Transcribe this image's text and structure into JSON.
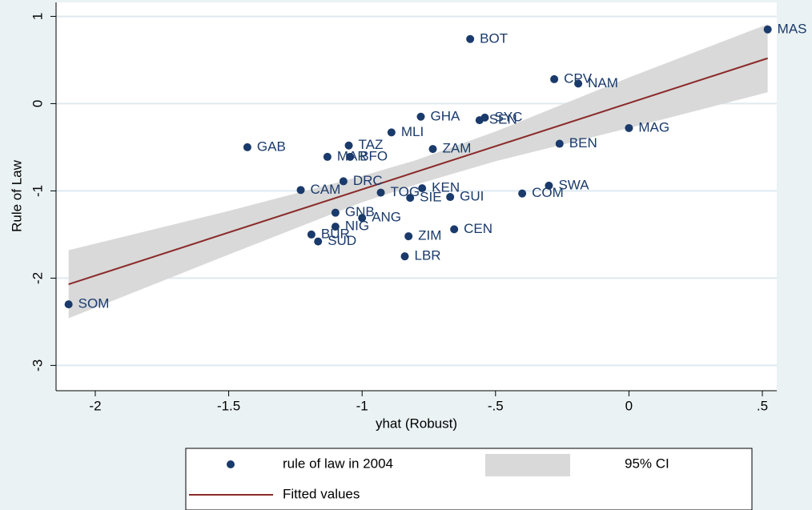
{
  "chart_data": {
    "type": "scatter",
    "xlabel": "yhat (Robust)",
    "ylabel": "Rule of Law",
    "xlim": [
      -2.147,
      0.554
    ],
    "ylim": [
      -3.29,
      1.16
    ],
    "xticks": [
      -2,
      {
        "value": -1.5,
        "label": "-1.5"
      },
      -1,
      {
        "value": -0.5,
        "label": "-.5"
      },
      0,
      {
        "value": 0.5,
        "label": ".5"
      }
    ],
    "yticks": [
      -3,
      -2,
      -1,
      0,
      1
    ],
    "grid": true,
    "series": [
      {
        "name": "rule of law  in 2004",
        "color": "#1a3a6b",
        "labels": [
          "MAS",
          "BOT",
          "CPV",
          "NAM",
          "GHA",
          "SYC",
          "SEN",
          "MLI",
          "GAB",
          "TAZ",
          "MAR",
          "BFO",
          "ZAM",
          "MAG",
          "BEN",
          "SWA",
          "COM",
          "KEN",
          "TOG",
          "SIE",
          "GUI",
          "CAM",
          "DRC",
          "GNB",
          "ANG",
          "NIG",
          "BUR",
          "SUD",
          "ZIM",
          "CEN",
          "LBR",
          "SOM"
        ],
        "x": [
          0.52,
          -0.595,
          -0.28,
          -0.19,
          -0.78,
          -0.54,
          -0.56,
          -0.89,
          -1.43,
          -1.05,
          -1.13,
          -1.045,
          -0.735,
          0,
          -0.26,
          -0.3,
          -0.4,
          -0.775,
          -0.93,
          -0.82,
          -0.67,
          -1.23,
          -1.07,
          -1.1,
          -1.0,
          -1.1,
          -1.19,
          -1.165,
          -0.826,
          -0.655,
          -0.84,
          -2.1
        ],
        "values": [
          0.85,
          0.74,
          0.28,
          0.23,
          -0.15,
          -0.16,
          -0.19,
          -0.33,
          -0.5,
          -0.48,
          -0.61,
          -0.61,
          -0.52,
          -0.28,
          -0.46,
          -0.94,
          -1.03,
          -0.97,
          -1.02,
          -1.08,
          -1.07,
          -0.99,
          -0.89,
          -1.25,
          -1.31,
          -1.41,
          -1.5,
          -1.58,
          -1.52,
          -1.44,
          -1.75,
          -2.3
        ]
      },
      {
        "name": "95% CI",
        "color": "#d9d9d9",
        "x": [
          -2.1,
          -1.5,
          -1,
          -0.8,
          -0.5,
          0,
          0.52
        ],
        "lower": [
          -2.46,
          -1.73,
          -1.13,
          -0.93,
          -0.66,
          -0.28,
          0.13
        ],
        "upper": [
          -1.68,
          -1.23,
          -0.83,
          -0.65,
          -0.32,
          0.3,
          0.91
        ]
      },
      {
        "name": "Fitted values",
        "color": "#8b2a2a",
        "x": [
          -2.1,
          0.52
        ],
        "values": [
          -2.07,
          0.52
        ]
      }
    ]
  }
}
